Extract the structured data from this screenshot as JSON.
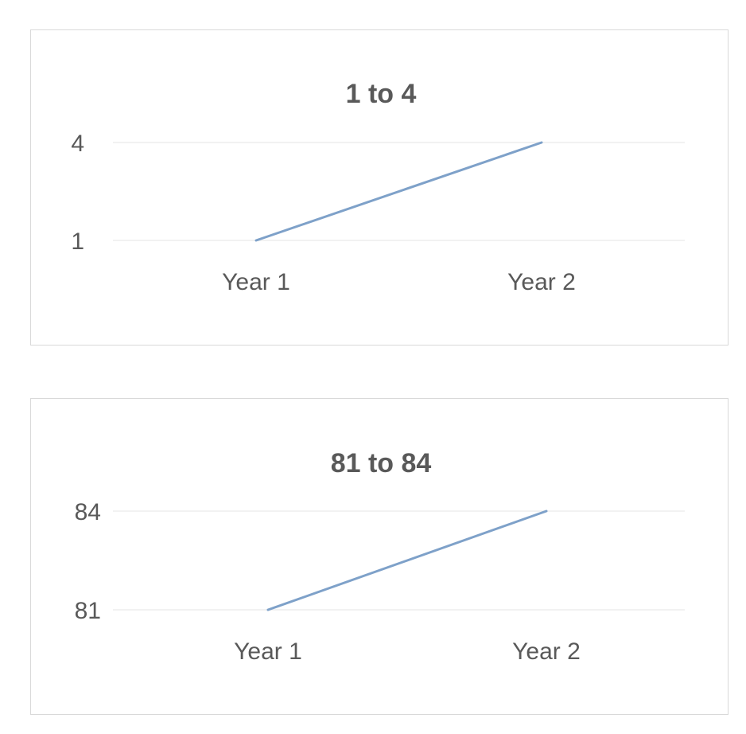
{
  "chart_data": [
    {
      "type": "line",
      "title": "1 to 4",
      "categories": [
        "Year 1",
        "Year 2"
      ],
      "series": [
        {
          "values": [
            1,
            4
          ],
          "color": "#7ea1c9"
        }
      ],
      "yticks": [
        1,
        4
      ],
      "ylim": [
        1,
        4
      ],
      "grid": true,
      "xlabel": "",
      "ylabel": ""
    },
    {
      "type": "line",
      "title": "81 to 84",
      "categories": [
        "Year 1",
        "Year 2"
      ],
      "series": [
        {
          "values": [
            81,
            84
          ],
          "color": "#7ea1c9"
        }
      ],
      "yticks": [
        81,
        84
      ],
      "ylim": [
        81,
        84
      ],
      "grid": true,
      "xlabel": "",
      "ylabel": ""
    }
  ]
}
